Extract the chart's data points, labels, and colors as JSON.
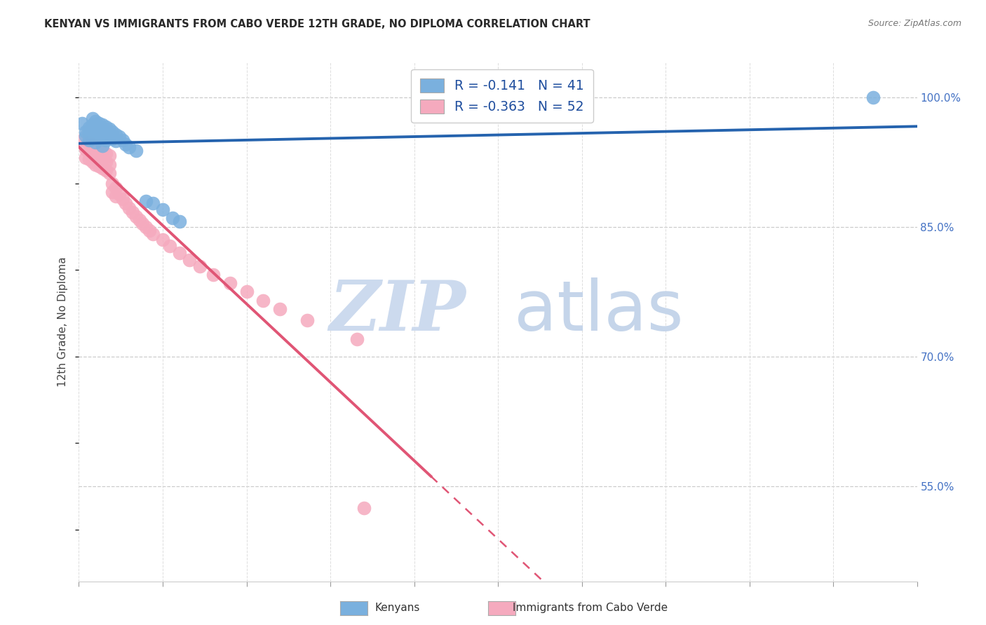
{
  "title": "KENYAN VS IMMIGRANTS FROM CABO VERDE 12TH GRADE, NO DIPLOMA CORRELATION CHART",
  "source": "Source: ZipAtlas.com",
  "ylabel": "12th Grade, No Diploma",
  "ylabel_right_values": [
    1.0,
    0.85,
    0.7,
    0.55
  ],
  "x_min": 0.0,
  "x_max": 0.25,
  "y_min": 0.44,
  "y_max": 1.04,
  "legend_label_blue": "Kenyans",
  "legend_label_pink": "Immigrants from Cabo Verde",
  "blue_scatter_color": "#7ab0de",
  "pink_scatter_color": "#f5aabe",
  "blue_line_color": "#2563ae",
  "pink_line_color": "#e05575",
  "watermark_zip_color": "#b8cce8",
  "watermark_atlas_color": "#c8d8f0",
  "blue_scatter_x": [
    0.001,
    0.002,
    0.002,
    0.003,
    0.003,
    0.003,
    0.004,
    0.004,
    0.004,
    0.004,
    0.005,
    0.005,
    0.005,
    0.005,
    0.006,
    0.006,
    0.006,
    0.007,
    0.007,
    0.007,
    0.007,
    0.008,
    0.008,
    0.008,
    0.009,
    0.009,
    0.01,
    0.01,
    0.011,
    0.011,
    0.012,
    0.013,
    0.014,
    0.015,
    0.017,
    0.02,
    0.022,
    0.025,
    0.028,
    0.03,
    0.237
  ],
  "blue_scatter_y": [
    0.97,
    0.96,
    0.955,
    0.965,
    0.958,
    0.95,
    0.975,
    0.968,
    0.96,
    0.952,
    0.972,
    0.965,
    0.956,
    0.948,
    0.97,
    0.963,
    0.955,
    0.968,
    0.96,
    0.952,
    0.944,
    0.966,
    0.958,
    0.95,
    0.963,
    0.955,
    0.96,
    0.952,
    0.957,
    0.949,
    0.954,
    0.95,
    0.945,
    0.942,
    0.938,
    0.88,
    0.877,
    0.87,
    0.86,
    0.856,
    1.0
  ],
  "pink_scatter_x": [
    0.001,
    0.002,
    0.002,
    0.003,
    0.003,
    0.003,
    0.004,
    0.004,
    0.004,
    0.005,
    0.005,
    0.005,
    0.006,
    0.006,
    0.006,
    0.007,
    0.007,
    0.007,
    0.008,
    0.008,
    0.008,
    0.009,
    0.009,
    0.009,
    0.01,
    0.01,
    0.011,
    0.011,
    0.012,
    0.013,
    0.014,
    0.015,
    0.016,
    0.017,
    0.018,
    0.019,
    0.02,
    0.021,
    0.022,
    0.025,
    0.027,
    0.03,
    0.033,
    0.036,
    0.04,
    0.045,
    0.05,
    0.055,
    0.06,
    0.068,
    0.083,
    0.085
  ],
  "pink_scatter_y": [
    0.95,
    0.94,
    0.93,
    0.948,
    0.938,
    0.928,
    0.945,
    0.935,
    0.925,
    0.942,
    0.932,
    0.922,
    0.94,
    0.93,
    0.92,
    0.938,
    0.928,
    0.918,
    0.935,
    0.925,
    0.915,
    0.932,
    0.922,
    0.912,
    0.9,
    0.89,
    0.895,
    0.885,
    0.888,
    0.882,
    0.877,
    0.872,
    0.867,
    0.862,
    0.858,
    0.854,
    0.85,
    0.846,
    0.842,
    0.835,
    0.828,
    0.82,
    0.812,
    0.804,
    0.795,
    0.785,
    0.775,
    0.765,
    0.755,
    0.742,
    0.72,
    0.525
  ],
  "pink_line_solid_end": 0.105,
  "blue_R": -0.141,
  "blue_N": 41,
  "pink_R": -0.363,
  "pink_N": 52
}
